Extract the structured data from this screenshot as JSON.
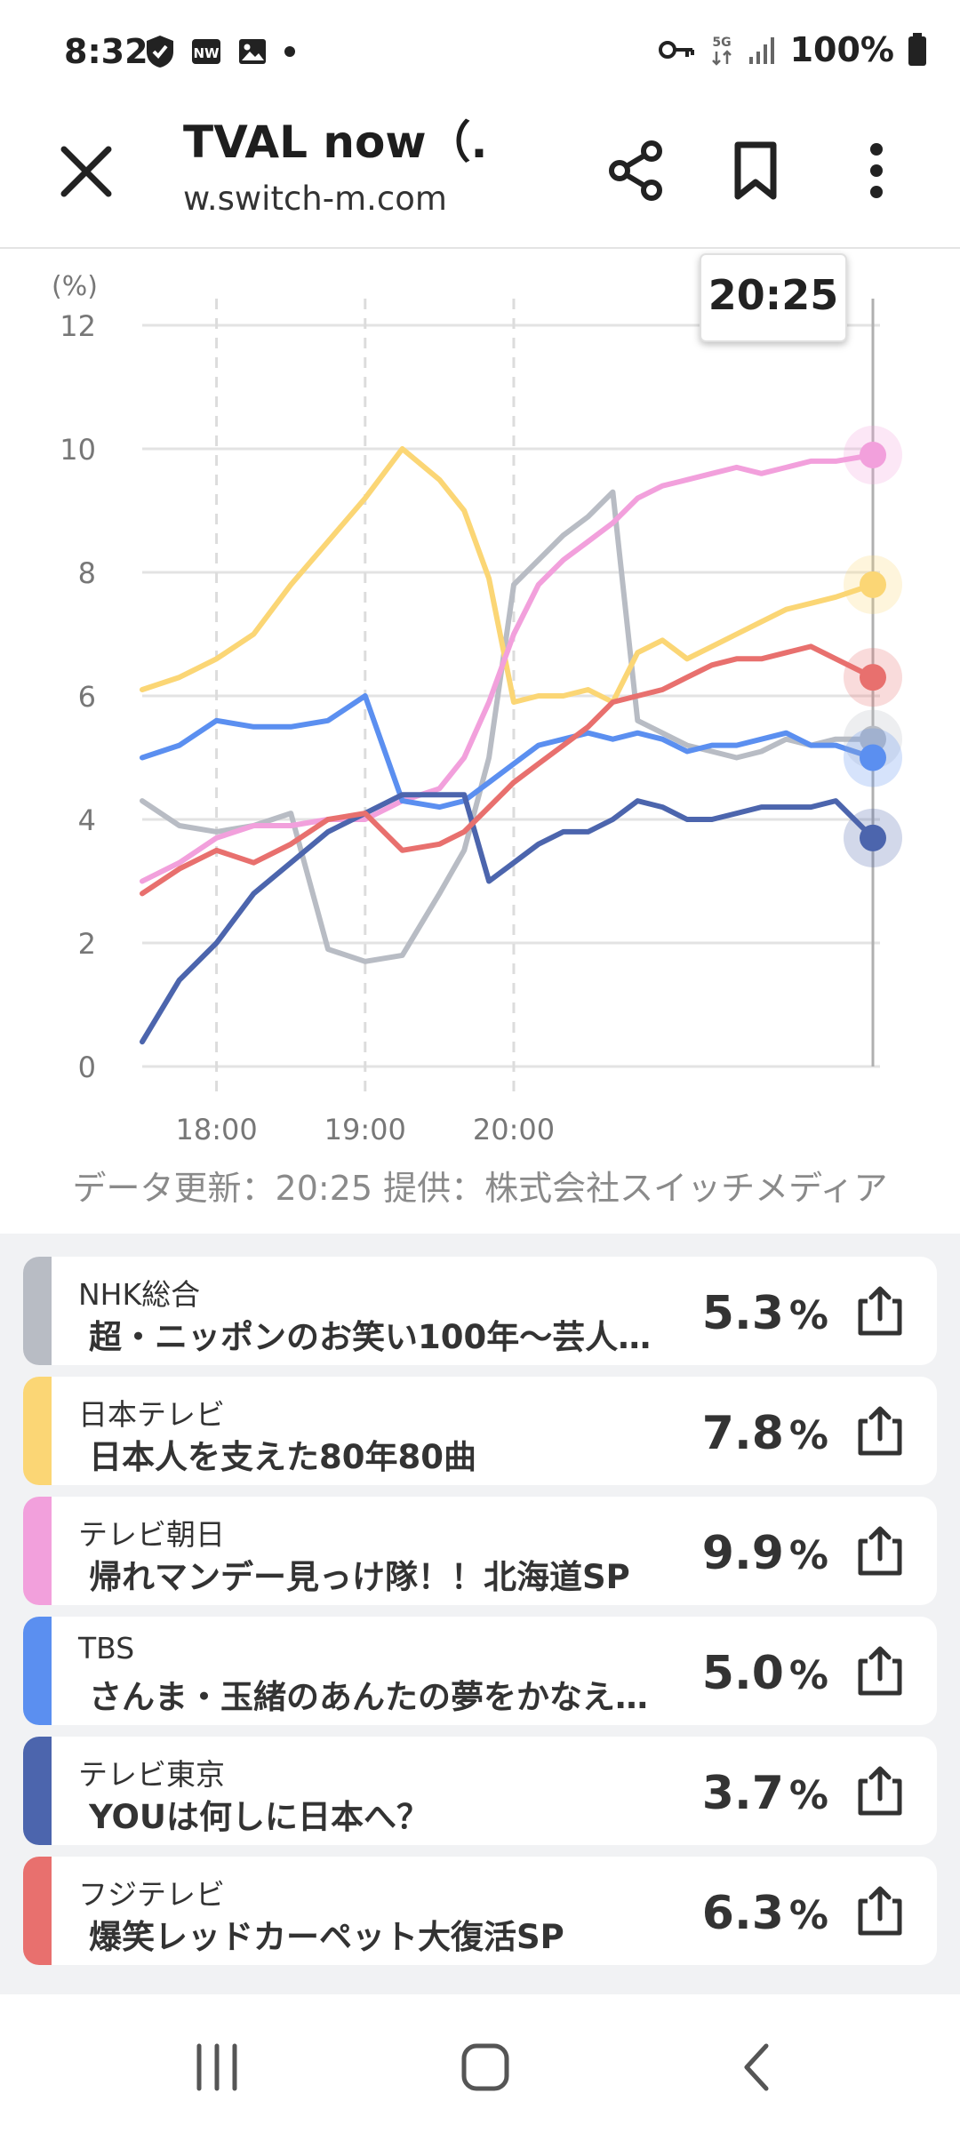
{
  "status_bar": {
    "time": "8:32",
    "battery": "100%",
    "network": "5G"
  },
  "header": {
    "title": "TVAL now（...",
    "url": "w.switch-m.com"
  },
  "chart_data": {
    "type": "line",
    "ylabel": "(%)",
    "ylim": [
      0,
      12
    ],
    "yticks": [
      "0",
      "2",
      "4",
      "6",
      "8",
      "10",
      "12"
    ],
    "xticks": [
      "18:00",
      "19:00",
      "20:00"
    ],
    "cursor_time": "20:25",
    "grid": true,
    "x_minutes": [
      0,
      15,
      30,
      45,
      60,
      75,
      90,
      105,
      120,
      130,
      140,
      150,
      160,
      170,
      180,
      190,
      200,
      210,
      220,
      230,
      240,
      250,
      260,
      270,
      280,
      295
    ],
    "x_minute_label": "minutes after 17:30",
    "series": [
      {
        "color": "#b8bcc4",
        "values": [
          4.3,
          3.9,
          3.8,
          3.9,
          4.1,
          1.9,
          1.7,
          1.8,
          2.8,
          3.5,
          5.0,
          7.8,
          8.2,
          8.6,
          8.9,
          9.3,
          5.6,
          5.4,
          5.2,
          5.1,
          5.0,
          5.1,
          5.3,
          5.2,
          5.3,
          5.3
        ]
      },
      {
        "color": "#fbd675",
        "values": [
          6.1,
          6.3,
          6.6,
          7.0,
          7.8,
          8.5,
          9.2,
          10.0,
          9.5,
          9.0,
          7.9,
          5.9,
          6.0,
          6.0,
          6.1,
          5.9,
          6.7,
          6.9,
          6.6,
          6.8,
          7.0,
          7.2,
          7.4,
          7.5,
          7.6,
          7.8
        ]
      },
      {
        "color": "#f2a0dc",
        "values": [
          3.0,
          3.3,
          3.7,
          3.9,
          3.9,
          4.0,
          4.0,
          4.3,
          4.5,
          5.0,
          5.9,
          7.0,
          7.8,
          8.2,
          8.5,
          8.8,
          9.2,
          9.4,
          9.5,
          9.6,
          9.7,
          9.6,
          9.7,
          9.8,
          9.8,
          9.9
        ]
      },
      {
        "color": "#5b8ff0",
        "values": [
          5.0,
          5.2,
          5.6,
          5.5,
          5.5,
          5.6,
          6.0,
          4.3,
          4.2,
          4.3,
          4.6,
          4.9,
          5.2,
          5.3,
          5.4,
          5.3,
          5.4,
          5.3,
          5.1,
          5.2,
          5.2,
          5.3,
          5.4,
          5.2,
          5.2,
          5.0
        ]
      },
      {
        "color": "#4c65ad",
        "values": [
          0.4,
          1.4,
          2.0,
          2.8,
          3.3,
          3.8,
          4.1,
          4.4,
          4.4,
          4.4,
          3.0,
          3.3,
          3.6,
          3.8,
          3.8,
          4.0,
          4.3,
          4.2,
          4.0,
          4.0,
          4.1,
          4.2,
          4.2,
          4.2,
          4.3,
          3.7
        ]
      },
      {
        "color": "#e8706e",
        "values": [
          2.8,
          3.2,
          3.5,
          3.3,
          3.6,
          4.0,
          4.1,
          3.5,
          3.6,
          3.8,
          4.2,
          4.6,
          4.9,
          5.2,
          5.5,
          5.9,
          6.0,
          6.1,
          6.3,
          6.5,
          6.6,
          6.6,
          6.7,
          6.8,
          6.6,
          6.3
        ]
      }
    ]
  },
  "credit": "データ更新：20:25  提供：株式会社スイッチメディア",
  "channels": [
    {
      "channel": "NHK総合",
      "program": "超・ニッポンのお笑い100年〜芸人…",
      "value": "5.3",
      "unit": "%",
      "color": "#b8bcc4"
    },
    {
      "channel": "日本テレビ",
      "program": "日本人を支えた80年80曲",
      "value": "7.8",
      "unit": "%",
      "color": "#fbd675"
    },
    {
      "channel": "テレビ朝日",
      "program": "帰れマンデー見っけ隊！！北海道SP",
      "value": "9.9",
      "unit": "%",
      "color": "#f2a0dc"
    },
    {
      "channel": "TBS",
      "program": "さんま・玉緒のあんたの夢をかなえ…",
      "value": "5.0",
      "unit": "%",
      "color": "#5b8ff0"
    },
    {
      "channel": "テレビ東京",
      "program": "YOUは何しに日本へ？",
      "value": "3.7",
      "unit": "%",
      "color": "#4c65ad"
    },
    {
      "channel": "フジテレビ",
      "program": "爆笑レッドカーペット大復活SP",
      "value": "6.3",
      "unit": "%",
      "color": "#e8706e"
    }
  ]
}
